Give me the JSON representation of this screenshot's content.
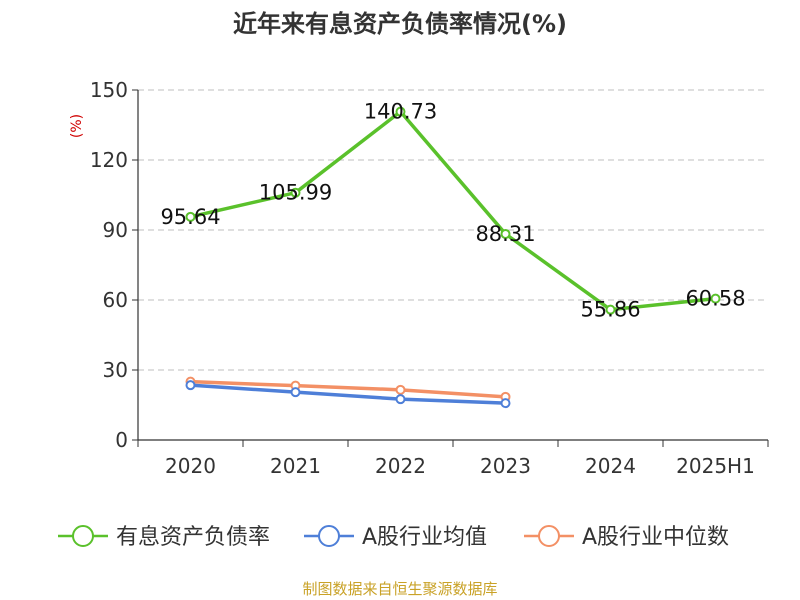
{
  "chart_data": {
    "type": "line",
    "title": "近年来有息资产负债率情况(%)",
    "ylabel": "(%)",
    "categories": [
      "2020",
      "2021",
      "2022",
      "2023",
      "2024",
      "2025H1"
    ],
    "yticks": [
      "0",
      "30",
      "60",
      "90",
      "120",
      "150"
    ],
    "ylim": [
      0,
      150
    ],
    "grid": true,
    "legend_position": "bottom",
    "series": [
      {
        "name": "有息资产负债率",
        "color": "#5ac12b",
        "values": [
          95.64,
          105.99,
          140.73,
          88.31,
          55.86,
          60.58
        ],
        "labels": [
          "95.64",
          "105.99",
          "140.73",
          "88.31",
          "55.86",
          "60.58"
        ]
      },
      {
        "name": "A股行业均值",
        "color": "#4e7fd8",
        "values": [
          23.5,
          20.5,
          17.5,
          15.8,
          null,
          null
        ],
        "labels": []
      },
      {
        "name": "A股行业中位数",
        "color": "#f39065",
        "values": [
          25.0,
          23.3,
          21.5,
          18.5,
          null,
          null
        ],
        "labels": []
      }
    ]
  },
  "source": "制图数据来自恒生聚源数据库"
}
